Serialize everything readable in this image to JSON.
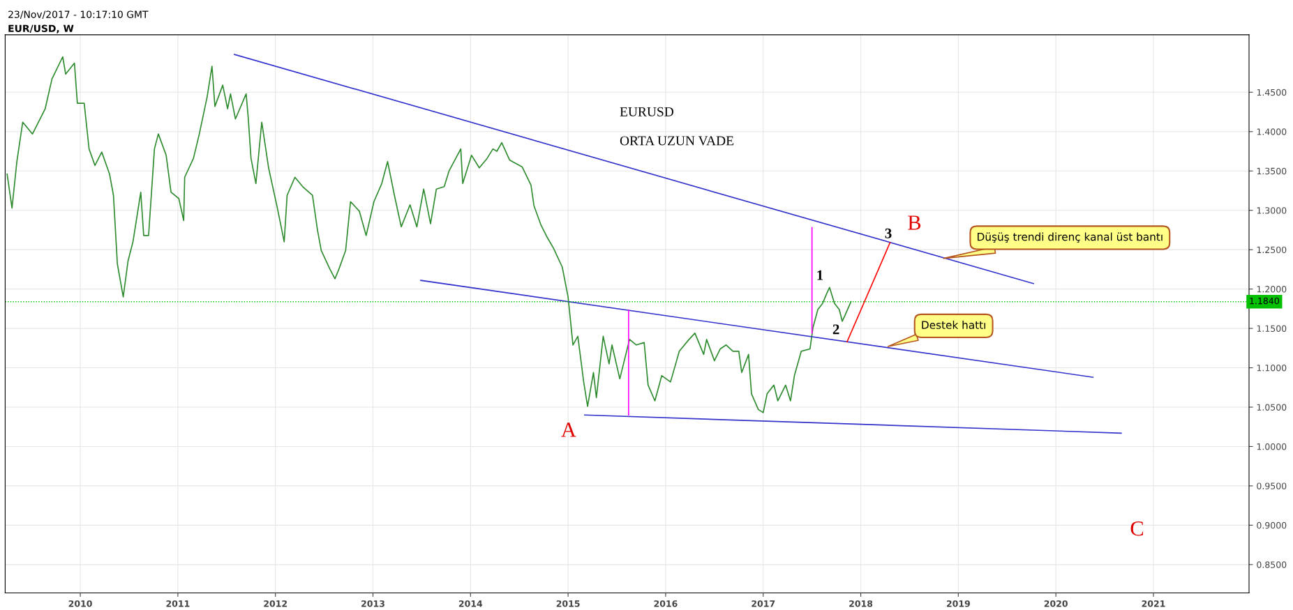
{
  "chart_data": {
    "type": "line",
    "title": "EUR/USD, W",
    "subtitle": "23/Nov/2017 - 10:17:10 GMT",
    "xlim": [
      2009.23,
      2021.98
    ],
    "ylim": [
      0.814,
      1.523
    ],
    "xticks": [
      2010,
      2011,
      2012,
      2013,
      2014,
      2015,
      2016,
      2017,
      2018,
      2019,
      2020,
      2021
    ],
    "yticks": [
      {
        "value": 0.85,
        "label": "0.8500"
      },
      {
        "value": 0.9,
        "label": "0.9000"
      },
      {
        "value": 0.95,
        "label": "0.9500"
      },
      {
        "value": 1.0,
        "label": "1.0000"
      },
      {
        "value": 1.05,
        "label": "1.0500"
      },
      {
        "value": 1.1,
        "label": "1.1000"
      },
      {
        "value": 1.15,
        "label": "1.1500"
      },
      {
        "value": 1.2,
        "label": "1.2000"
      },
      {
        "value": 1.25,
        "label": "1.2500"
      },
      {
        "value": 1.3,
        "label": "1.3000"
      },
      {
        "value": 1.35,
        "label": "1.3500"
      },
      {
        "value": 1.4,
        "label": "1.4000"
      },
      {
        "value": 1.45,
        "label": "1.4500"
      }
    ],
    "grid": true,
    "series": [
      {
        "color": "#2e8b2e",
        "x": [
          2009.25,
          2009.3,
          2009.35,
          2009.41,
          2009.51,
          2009.64,
          2009.71,
          2009.82,
          2009.85,
          2009.94,
          2009.97,
          2010.04,
          2010.09,
          2010.15,
          2010.22,
          2010.3,
          2010.34,
          2010.38,
          2010.44,
          2010.49,
          2010.54,
          2010.62,
          2010.65,
          2010.7,
          2010.76,
          2010.8,
          2010.88,
          2010.93,
          2011.01,
          2011.06,
          2011.07,
          2011.16,
          2011.22,
          2011.3,
          2011.35,
          2011.38,
          2011.46,
          2011.51,
          2011.54,
          2011.59,
          2011.7,
          2011.72,
          2011.75,
          2011.8,
          2011.86,
          2011.93,
          2012.02,
          2012.09,
          2012.12,
          2012.2,
          2012.28,
          2012.38,
          2012.43,
          2012.47,
          2012.56,
          2012.61,
          2012.65,
          2012.72,
          2012.77,
          2012.86,
          2012.93,
          2013.01,
          2013.09,
          2013.15,
          2013.22,
          2013.29,
          2013.38,
          2013.45,
          2013.52,
          2013.59,
          2013.65,
          2013.73,
          2013.78,
          2013.9,
          2013.92,
          2014.01,
          2014.09,
          2014.17,
          2014.23,
          2014.27,
          2014.32,
          2014.4,
          2014.53,
          2014.62,
          2014.65,
          2014.72,
          2014.78,
          2014.85,
          2014.94,
          2015.0,
          2015.05,
          2015.1,
          2015.16,
          2015.2,
          2015.26,
          2015.29,
          2015.36,
          2015.42,
          2015.45,
          2015.53,
          2015.63,
          2015.7,
          2015.78,
          2015.82,
          2015.89,
          2015.96,
          2016.05,
          2016.14,
          2016.24,
          2016.3,
          2016.39,
          2016.42,
          2016.5,
          2016.56,
          2016.62,
          2016.69,
          2016.75,
          2016.78,
          2016.85,
          2016.88,
          2016.95,
          2017.0,
          2017.04,
          2017.11,
          2017.15,
          2017.23,
          2017.28,
          2017.32,
          2017.39,
          2017.48,
          2017.51,
          2017.56,
          2017.61,
          2017.65,
          2017.68,
          2017.73,
          2017.78,
          2017.81,
          2017.84,
          2017.9
        ],
        "values": [
          1.346,
          1.303,
          1.362,
          1.412,
          1.397,
          1.429,
          1.467,
          1.495,
          1.473,
          1.487,
          1.436,
          1.436,
          1.378,
          1.357,
          1.374,
          1.346,
          1.319,
          1.232,
          1.19,
          1.236,
          1.26,
          1.323,
          1.268,
          1.268,
          1.378,
          1.397,
          1.37,
          1.323,
          1.315,
          1.287,
          1.342,
          1.366,
          1.397,
          1.444,
          1.483,
          1.432,
          1.459,
          1.429,
          1.448,
          1.416,
          1.448,
          1.42,
          1.366,
          1.334,
          1.412,
          1.354,
          1.303,
          1.26,
          1.319,
          1.342,
          1.33,
          1.319,
          1.276,
          1.249,
          1.225,
          1.213,
          1.225,
          1.249,
          1.311,
          1.299,
          1.268,
          1.311,
          1.334,
          1.362,
          1.319,
          1.279,
          1.307,
          1.279,
          1.327,
          1.283,
          1.327,
          1.33,
          1.35,
          1.378,
          1.334,
          1.37,
          1.354,
          1.366,
          1.378,
          1.375,
          1.386,
          1.364,
          1.355,
          1.332,
          1.306,
          1.282,
          1.267,
          1.252,
          1.228,
          1.19,
          1.129,
          1.14,
          1.082,
          1.051,
          1.094,
          1.062,
          1.14,
          1.105,
          1.129,
          1.086,
          1.136,
          1.129,
          1.132,
          1.078,
          1.058,
          1.09,
          1.082,
          1.121,
          1.136,
          1.144,
          1.117,
          1.136,
          1.109,
          1.124,
          1.129,
          1.121,
          1.121,
          1.094,
          1.117,
          1.067,
          1.047,
          1.043,
          1.067,
          1.078,
          1.058,
          1.078,
          1.058,
          1.09,
          1.121,
          1.124,
          1.151,
          1.174,
          1.182,
          1.194,
          1.202,
          1.182,
          1.174,
          1.159,
          1.167,
          1.184
        ]
      },
      {
        "color": "#3333cc",
        "x": [
          2011.58,
          2019.77
        ],
        "values": [
          1.498,
          1.207
        ]
      },
      {
        "color": "#3333cc",
        "x": [
          2013.49,
          2020.38
        ],
        "values": [
          1.211,
          1.088
        ]
      },
      {
        "color": "#3333cc",
        "x": [
          2015.17,
          2020.67
        ],
        "values": [
          1.04,
          1.017
        ]
      },
      {
        "color": "#ff00ff",
        "x": [
          2015.62,
          2015.62
        ],
        "values": [
          1.173,
          1.04
        ]
      },
      {
        "color": "#ff00ff",
        "x": [
          2017.5,
          2017.5
        ],
        "values": [
          1.278,
          1.144
        ]
      },
      {
        "color": "#ff0000",
        "x": [
          2017.86,
          2018.3
        ],
        "values": [
          1.133,
          1.259
        ]
      }
    ],
    "ref_lines": [
      {
        "axis": "y",
        "value": 1.184,
        "label": "1.1840",
        "color": "#00c000",
        "line_style": "dotted"
      }
    ],
    "annotations": [
      "EURUSD",
      "ORTA UZUN VADE",
      "A",
      "B",
      "C",
      "1",
      "2",
      "3",
      {
        "text": "Düşüş trendi direnç kanal üst bantı",
        "x": 2018.85,
        "y": 1.239
      },
      {
        "text": "Destek hattı",
        "x": 2018.28,
        "y": 1.127
      }
    ]
  }
}
